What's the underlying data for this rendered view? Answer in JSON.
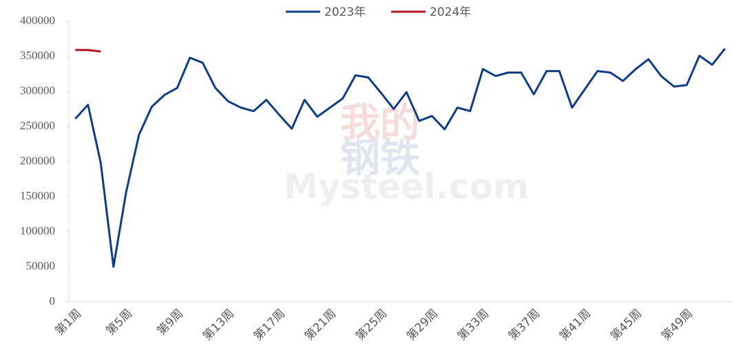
{
  "chart_data": {
    "type": "line",
    "watermark": [
      "我的",
      "钢铁",
      "Mysteel.com"
    ],
    "categories": [
      "第1周",
      null,
      null,
      null,
      "第5周",
      null,
      null,
      null,
      "第9周",
      null,
      null,
      null,
      "第13周",
      null,
      null,
      null,
      "第17周",
      null,
      null,
      null,
      "第21周",
      null,
      null,
      null,
      "第25周",
      null,
      null,
      null,
      "第29周",
      null,
      null,
      null,
      "第33周",
      null,
      null,
      null,
      "第37周",
      null,
      null,
      null,
      "第41周",
      null,
      null,
      null,
      "第45周",
      null,
      null,
      null,
      "第49周",
      null,
      null,
      null
    ],
    "series": [
      {
        "name": "2023年",
        "color": "#0e3d86",
        "values": [
          261000,
          281000,
          198000,
          50000,
          157000,
          238000,
          278000,
          295000,
          305000,
          348000,
          341000,
          305000,
          286000,
          277000,
          272000,
          288000,
          267000,
          247000,
          288000,
          264000,
          277000,
          290000,
          323000,
          320000,
          298000,
          275000,
          299000,
          258000,
          265000,
          246000,
          277000,
          272000,
          332000,
          322000,
          327000,
          327000,
          296000,
          329000,
          329000,
          277000,
          303000,
          329000,
          327000,
          315000,
          332000,
          346000,
          322000,
          307000,
          309000,
          351000,
          338000,
          361000
        ]
      },
      {
        "name": "2024年",
        "color": "#b8121b",
        "values": [
          359000,
          359000,
          357000,
          null,
          null,
          null,
          null,
          null,
          null,
          null,
          null,
          null,
          null,
          null,
          null,
          null,
          null,
          null,
          null,
          null,
          null,
          null,
          null,
          null,
          null,
          null,
          null,
          null,
          null,
          null,
          null,
          null,
          null,
          null,
          null,
          null,
          null,
          null,
          null,
          null,
          null,
          null,
          null,
          null,
          null,
          null,
          null,
          null,
          null,
          null,
          null,
          null
        ]
      }
    ],
    "ylim": [
      0,
      400000
    ],
    "yticks": [
      0,
      50000,
      100000,
      150000,
      200000,
      250000,
      300000,
      350000,
      400000
    ],
    "legend": "top"
  }
}
